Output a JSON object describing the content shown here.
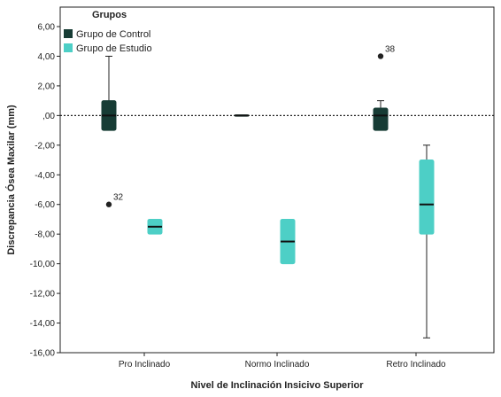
{
  "chart_data": {
    "type": "boxplot",
    "xlabel": "Nivel de Inclinación Insicivo Superior",
    "ylabel": "Discrepancia Ósea Maxilar (mm)",
    "ylim": [
      -16,
      6
    ],
    "yticks": [
      6,
      4,
      2,
      0,
      -2,
      -4,
      -6,
      -8,
      -10,
      -12,
      -14,
      -16
    ],
    "ytick_labels": [
      "6,00",
      "4,00",
      "2,00",
      ",00",
      "-2,00",
      "-4,00",
      "-6,00",
      "-8,00",
      "-10,00",
      "-12,00",
      "-14,00",
      "-16,00"
    ],
    "reference_line": {
      "y": 0,
      "style": "dotted"
    },
    "categories": [
      "Pro Inclinado",
      "Normo Inclinado",
      "Retro Inclinado"
    ],
    "legend": {
      "title": "Grupos",
      "placement": "top-left",
      "entries": [
        "Grupo de Control",
        "Grupo de Estudio"
      ]
    },
    "series": [
      {
        "name": "Grupo de Control",
        "color": "#173c35",
        "boxes": [
          {
            "category": "Pro Inclinado",
            "whisker_low": -1,
            "q1": -1,
            "median": 0,
            "q3": 1,
            "whisker_high": 4,
            "outliers": [
              {
                "value": -6,
                "label": "32"
              }
            ]
          },
          {
            "category": "Normo Inclinado",
            "whisker_low": 0,
            "q1": 0,
            "median": 0,
            "q3": 0,
            "whisker_high": 0,
            "outliers": []
          },
          {
            "category": "Retro Inclinado",
            "whisker_low": -1,
            "q1": -1,
            "median": 0,
            "q3": 0.5,
            "whisker_high": 1,
            "outliers": [
              {
                "value": 4,
                "label": "38"
              }
            ]
          }
        ]
      },
      {
        "name": "Grupo de Estudio",
        "color": "#4dcfc6",
        "boxes": [
          {
            "category": "Pro Inclinado",
            "whisker_low": -8,
            "q1": -8,
            "median": -7.5,
            "q3": -7,
            "whisker_high": -7,
            "outliers": []
          },
          {
            "category": "Normo Inclinado",
            "whisker_low": -10,
            "q1": -10,
            "median": -8.5,
            "q3": -7,
            "whisker_high": -7,
            "outliers": []
          },
          {
            "category": "Retro Inclinado",
            "whisker_low": -15,
            "q1": -8,
            "median": -6,
            "q3": -3,
            "whisker_high": -2,
            "outliers": []
          }
        ]
      }
    ]
  }
}
